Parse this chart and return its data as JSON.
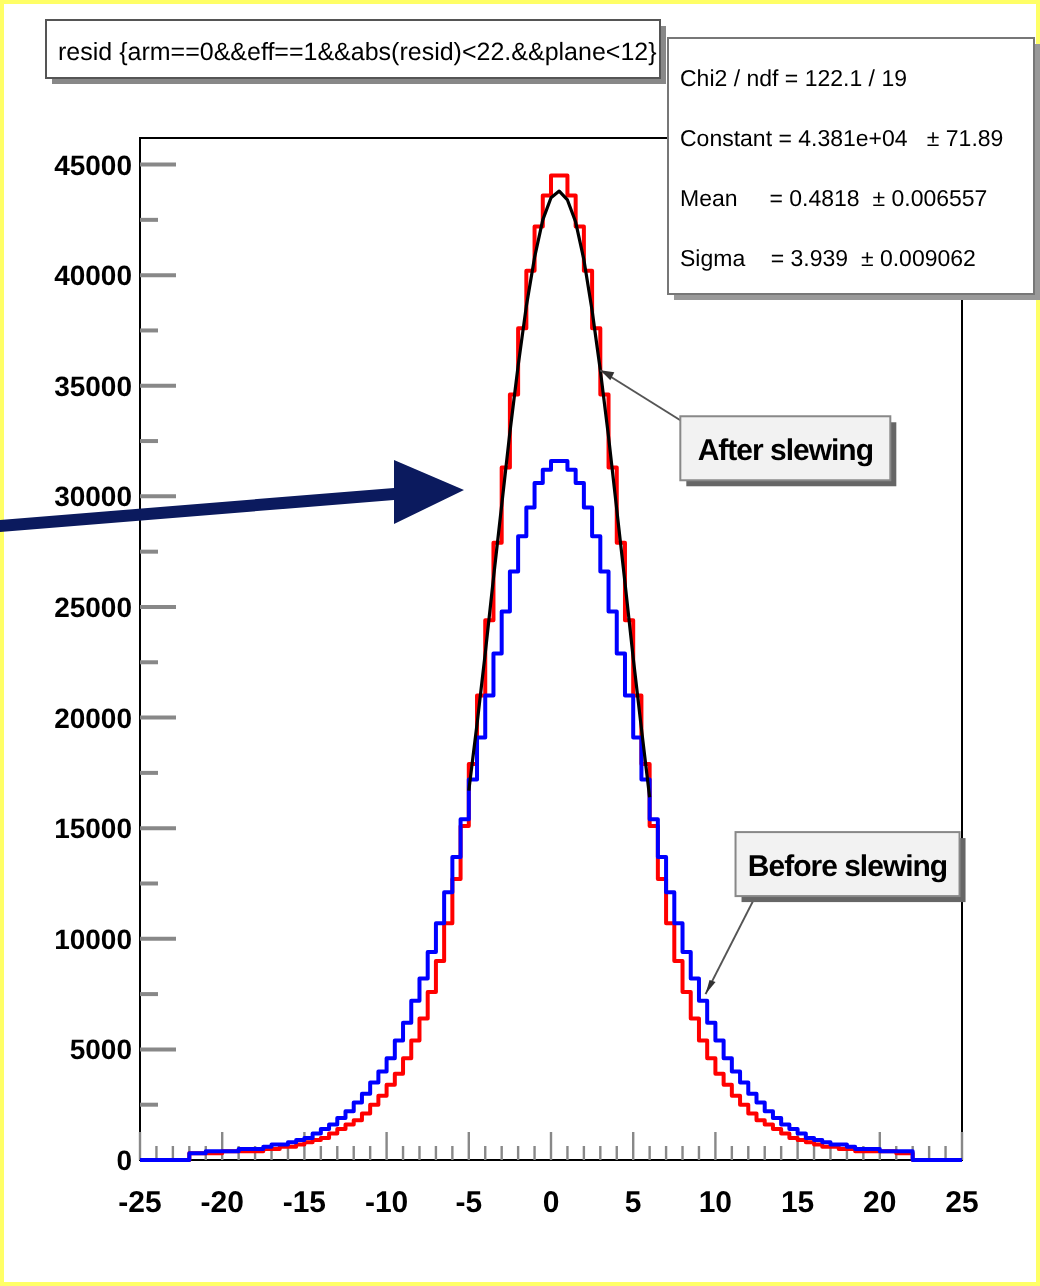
{
  "chart_data": {
    "type": "histogram",
    "title": "resid {arm==0&&eff==1&&abs(resid)<22.&&plane<12}",
    "bins": [
      -25,
      -24.5,
      -24,
      -23.5,
      -23,
      -22.5,
      -22,
      -21.5,
      -21,
      -20.5,
      -20,
      -19.5,
      -19,
      -18.5,
      -18,
      -17.5,
      -17,
      -16.5,
      -16,
      -15.5,
      -15,
      -14.5,
      -14,
      -13.5,
      -13,
      -12.5,
      -12,
      -11.5,
      -11,
      -10.5,
      -10,
      -9.5,
      -9,
      -8.5,
      -8,
      -7.5,
      -7,
      -6.5,
      -6,
      -5.5,
      -5,
      -4.5,
      -4,
      -3.5,
      -3,
      -2.5,
      -2,
      -1.5,
      -1,
      -0.5,
      0,
      0.5,
      1,
      1.5,
      2,
      2.5,
      3,
      3.5,
      4,
      4.5,
      5,
      5.5,
      6,
      6.5,
      7,
      7.5,
      8,
      8.5,
      9,
      9.5,
      10,
      10.5,
      11,
      11.5,
      12,
      12.5,
      13,
      13.5,
      14,
      14.5,
      15,
      15.5,
      16,
      16.5,
      17,
      17.5,
      18,
      18.5,
      19,
      19.5,
      20,
      20.5,
      21,
      21.5,
      22,
      22.5,
      23,
      23.5,
      24,
      24.5,
      25
    ],
    "series": [
      {
        "color": "#ff0000",
        "values": [
          0,
          0,
          0,
          0,
          0,
          0,
          300,
          300,
          300,
          300,
          400,
          400,
          400,
          400,
          400,
          500,
          500,
          600,
          600,
          700,
          800,
          900,
          1000,
          1200,
          1400,
          1600,
          1800,
          2100,
          2500,
          2900,
          3400,
          3900,
          4600,
          5400,
          6400,
          7600,
          9000,
          10700,
          12700,
          15100,
          17900,
          21000,
          24400,
          27900,
          31300,
          34600,
          37600,
          40200,
          42200,
          43600,
          44500,
          44500,
          43600,
          42200,
          40200,
          37600,
          34600,
          31300,
          27900,
          24400,
          21000,
          17900,
          15100,
          12700,
          10700,
          9000,
          7600,
          6400,
          5400,
          4600,
          3900,
          3400,
          2900,
          2500,
          2100,
          1800,
          1600,
          1400,
          1200,
          1000,
          900,
          800,
          700,
          600,
          600,
          500,
          500,
          400,
          400,
          400,
          400,
          400,
          300,
          300,
          0,
          0,
          0,
          0,
          0,
          0
        ]
      },
      {
        "color": "#0000ff",
        "values": [
          0,
          0,
          0,
          0,
          0,
          0,
          300,
          300,
          400,
          400,
          400,
          400,
          500,
          500,
          500,
          600,
          700,
          700,
          800,
          900,
          1000,
          1200,
          1400,
          1600,
          1900,
          2200,
          2600,
          3000,
          3500,
          4000,
          4600,
          5400,
          6200,
          7200,
          8200,
          9400,
          10700,
          12100,
          13700,
          15400,
          17200,
          19100,
          21000,
          22900,
          24800,
          26600,
          28200,
          29500,
          30600,
          31200,
          31600,
          31600,
          31200,
          30600,
          29500,
          28200,
          26600,
          24800,
          22900,
          21000,
          19100,
          17200,
          15400,
          13700,
          12100,
          10700,
          9400,
          8200,
          7200,
          6200,
          5400,
          4600,
          4000,
          3500,
          3000,
          2600,
          2200,
          1900,
          1600,
          1400,
          1200,
          1000,
          900,
          800,
          700,
          700,
          600,
          500,
          500,
          500,
          400,
          400,
          400,
          400,
          0,
          0,
          0,
          0,
          0,
          0
        ]
      },
      {
        "type": "line",
        "color": "#000000",
        "x": [
          -5,
          -4.5,
          -4,
          -3.5,
          -3,
          -2.5,
          -2,
          -1.5,
          -1,
          -0.5,
          0,
          0.5,
          1,
          1.5,
          2,
          2.5,
          3,
          3.5,
          4,
          4.5,
          5,
          5.5,
          6
        ],
        "values": [
          16700,
          19700,
          22900,
          26300,
          29600,
          32900,
          35900,
          38600,
          40800,
          42500,
          43500,
          43800,
          43400,
          42400,
          40700,
          38400,
          35700,
          32700,
          29400,
          26100,
          22700,
          19500,
          16400
        ]
      }
    ],
    "xlim": [
      -25,
      25
    ],
    "xticks": [
      -25,
      {
        "value": -24,
        "label": null
      },
      {
        "value": -23,
        "label": null
      },
      {
        "value": -22,
        "label": null
      },
      {
        "value": -21,
        "label": null
      },
      -20,
      {
        "value": -19,
        "label": null
      },
      {
        "value": -18,
        "label": null
      },
      {
        "value": -17,
        "label": null
      },
      {
        "value": -16,
        "label": null
      },
      -15,
      {
        "value": -14,
        "label": null
      },
      {
        "value": -13,
        "label": null
      },
      {
        "value": -12,
        "label": null
      },
      {
        "value": -11,
        "label": null
      },
      -10,
      {
        "value": -9,
        "label": null
      },
      {
        "value": -8,
        "label": null
      },
      {
        "value": -7,
        "label": null
      },
      {
        "value": -6,
        "label": null
      },
      -5,
      {
        "value": -4,
        "label": null
      },
      {
        "value": -3,
        "label": null
      },
      {
        "value": -2,
        "label": null
      },
      {
        "value": -1,
        "label": null
      },
      0,
      {
        "value": 1,
        "label": null
      },
      {
        "value": 2,
        "label": null
      },
      {
        "value": 3,
        "label": null
      },
      {
        "value": 4,
        "label": null
      },
      5,
      {
        "value": 6,
        "label": null
      },
      {
        "value": 7,
        "label": null
      },
      {
        "value": 8,
        "label": null
      },
      {
        "value": 9,
        "label": null
      },
      10,
      {
        "value": 11,
        "label": null
      },
      {
        "value": 12,
        "label": null
      },
      {
        "value": 13,
        "label": null
      },
      {
        "value": 14,
        "label": null
      },
      15,
      {
        "value": 16,
        "label": null
      },
      {
        "value": 17,
        "label": null
      },
      {
        "value": 18,
        "label": null
      },
      {
        "value": 19,
        "label": null
      },
      20,
      {
        "value": 21,
        "label": null
      },
      {
        "value": 22,
        "label": null
      },
      {
        "value": 23,
        "label": null
      },
      {
        "value": 24,
        "label": null
      },
      25
    ],
    "ylim": [
      0,
      46200
    ],
    "yticks": [
      0,
      {
        "value": 2500,
        "label": null
      },
      5000,
      {
        "value": 7500,
        "label": null
      },
      10000,
      {
        "value": 12500,
        "label": null
      },
      15000,
      {
        "value": 17500,
        "label": null
      },
      20000,
      {
        "value": 22500,
        "label": null
      },
      25000,
      {
        "value": 27500,
        "label": null
      },
      30000,
      {
        "value": 32500,
        "label": null
      },
      35000,
      {
        "value": 37500,
        "label": null
      },
      40000,
      {
        "value": 42500,
        "label": null
      },
      45000
    ],
    "grid": false,
    "annotations": [
      "Chi2 / ndf = 122.1 / 19",
      "Constant = 4.381e+04   ± 71.89",
      "Mean     = 0.4818  ± 0.006557",
      "Sigma    = 3.939  ± 0.009062",
      {
        "text": "After slewing",
        "x": 3,
        "y": 35700
      },
      {
        "text": "Before slewing",
        "x": 9.4,
        "y": 7500
      }
    ]
  }
}
